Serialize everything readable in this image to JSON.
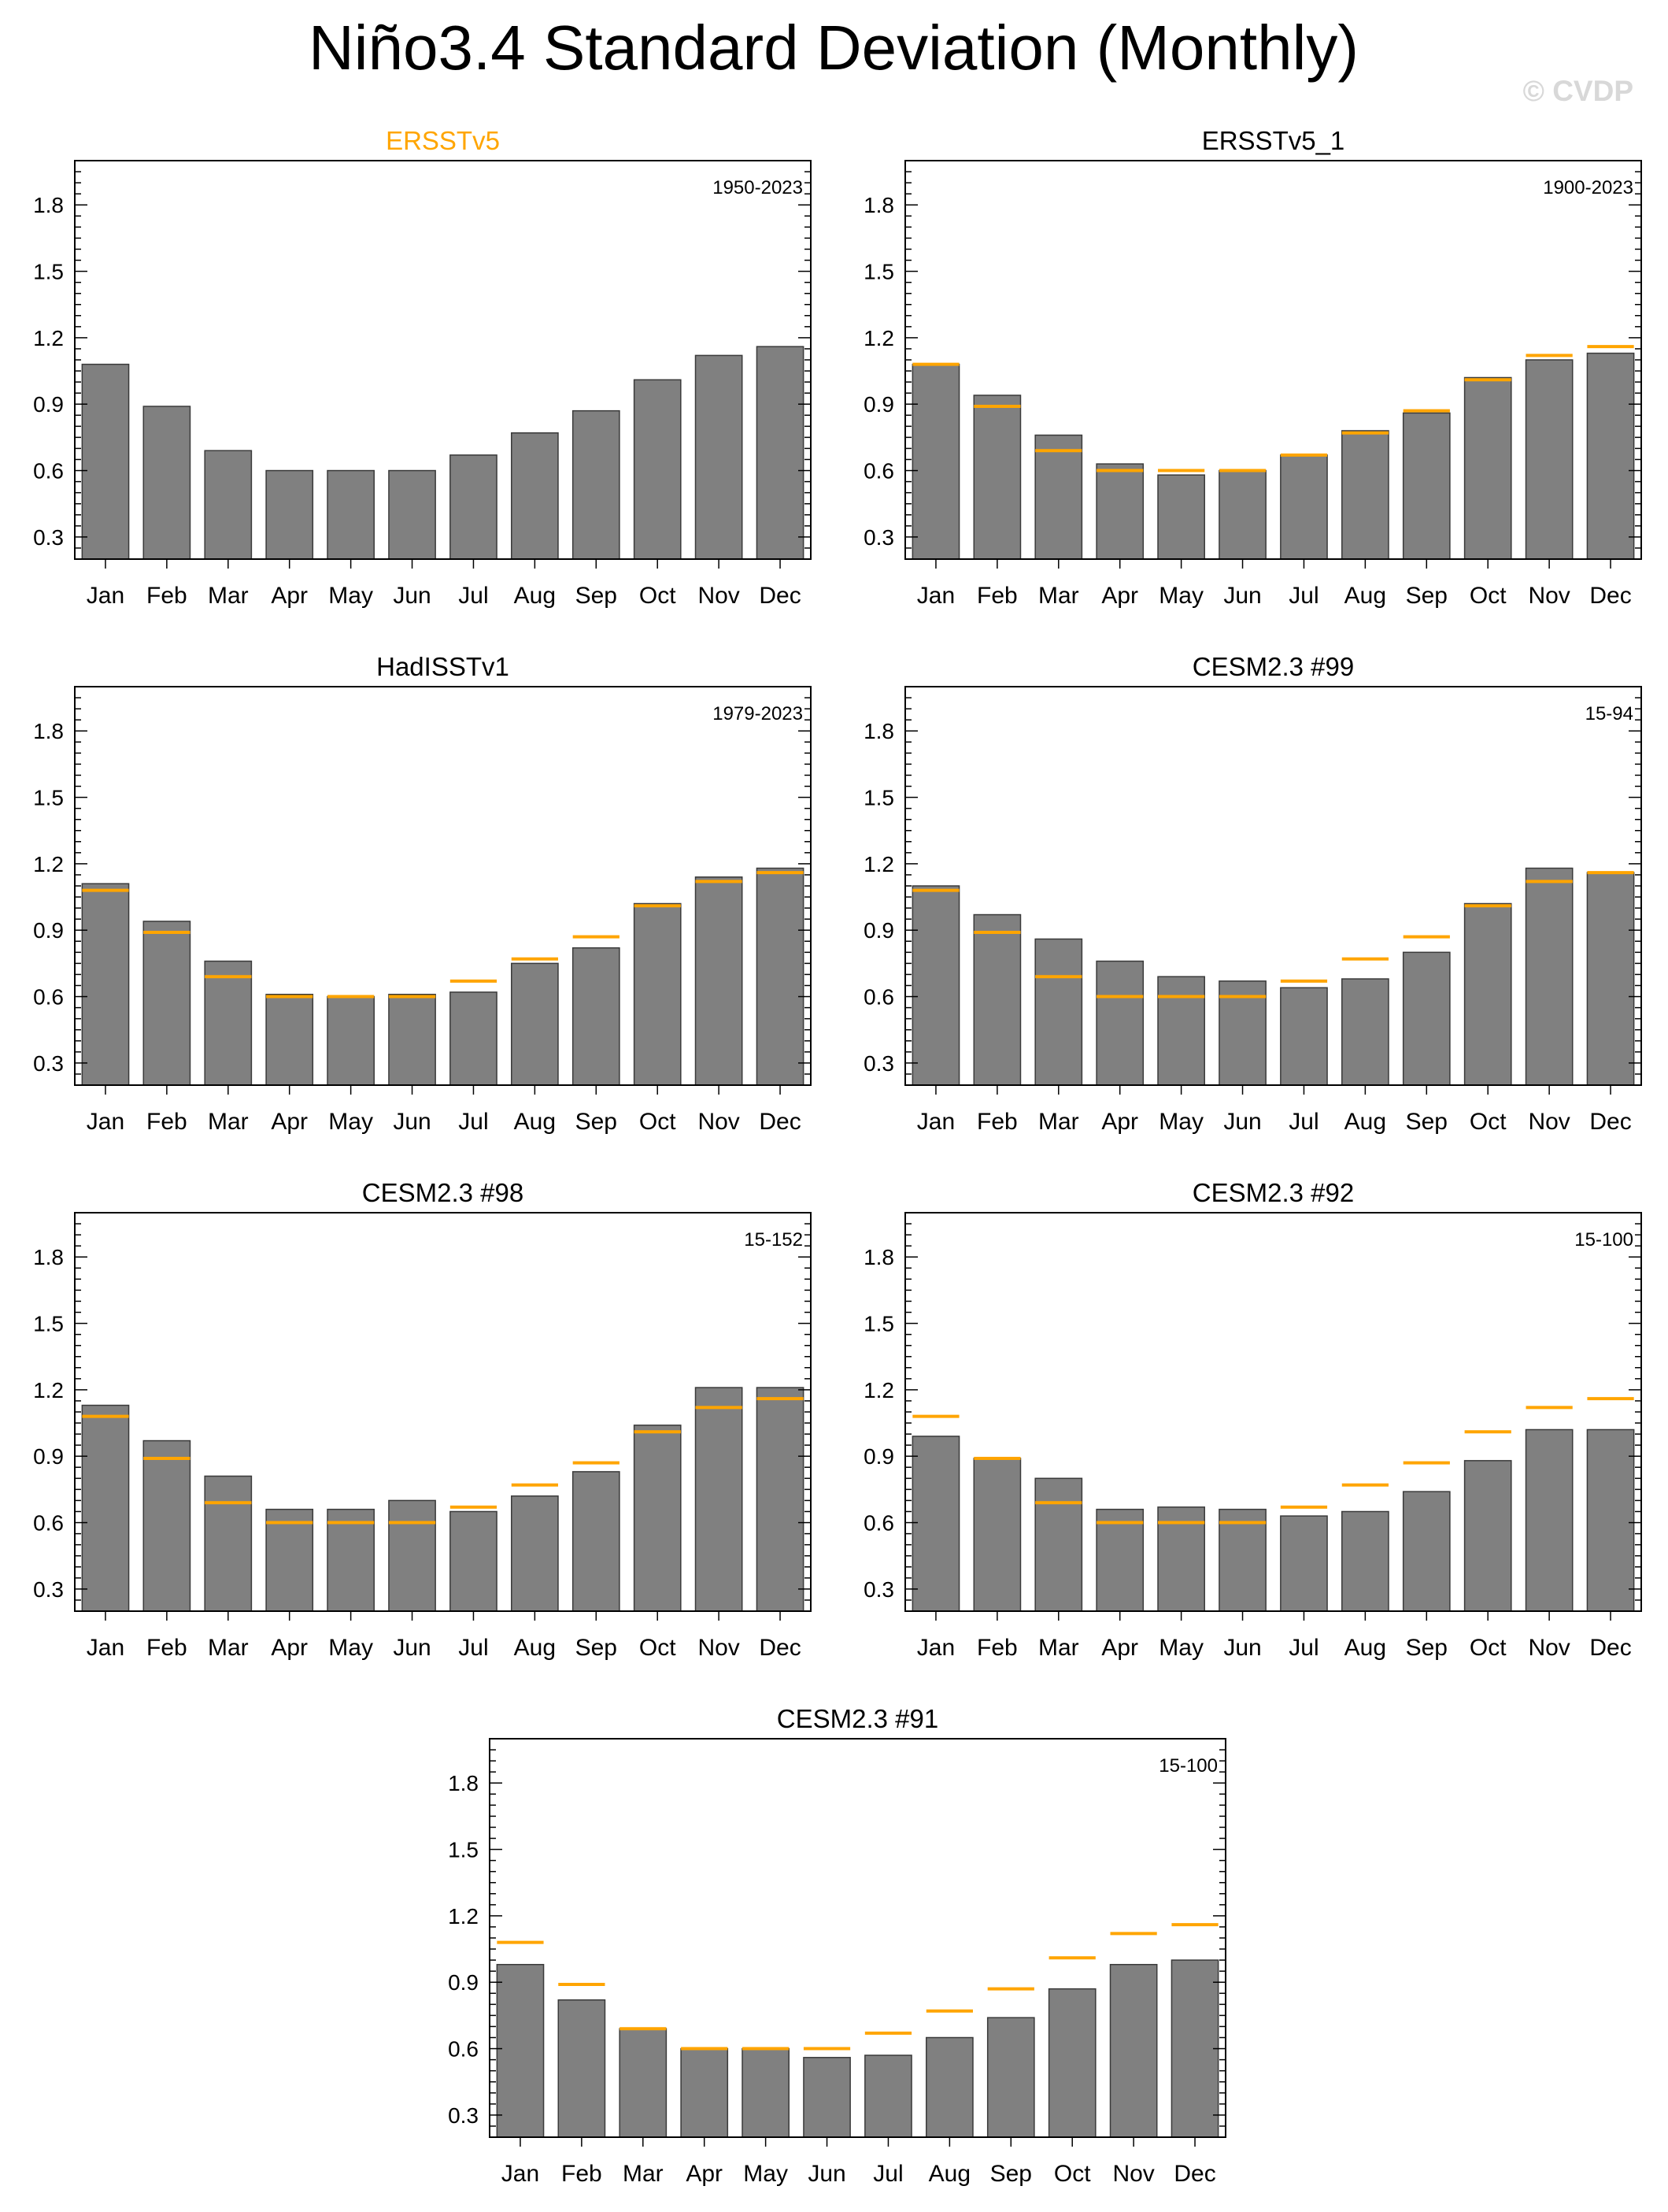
{
  "title": "Niño3.4 Standard Deviation (Monthly)",
  "watermark": "© CVDP",
  "colors": {
    "bar": "#808080",
    "bar_edge": "#3a3a3a",
    "reference": "#FFA500",
    "reference_title": "#FFA500",
    "axis": "#000000",
    "watermark": "#d8d8d8"
  },
  "chart_data": [
    {
      "type": "bar",
      "title": "ERSSTv5",
      "is_reference": true,
      "period": "1950-2023",
      "categories": [
        "Jan",
        "Feb",
        "Mar",
        "Apr",
        "May",
        "Jun",
        "Jul",
        "Aug",
        "Sep",
        "Oct",
        "Nov",
        "Dec"
      ],
      "values": [
        1.08,
        0.89,
        0.69,
        0.6,
        0.6,
        0.6,
        0.67,
        0.77,
        0.87,
        1.01,
        1.12,
        1.16
      ],
      "ylim": [
        0.2,
        2.0
      ],
      "yticks": [
        0.3,
        0.6,
        0.9,
        1.2,
        1.5,
        1.8
      ],
      "ytick_labels": [
        "0.3",
        "0.6",
        "0.9",
        "1.2",
        "1.5",
        "1.8"
      ]
    },
    {
      "type": "bar",
      "title": "ERSSTv5_1",
      "period": "1900-2023",
      "categories": [
        "Jan",
        "Feb",
        "Mar",
        "Apr",
        "May",
        "Jun",
        "Jul",
        "Aug",
        "Sep",
        "Oct",
        "Nov",
        "Dec"
      ],
      "values": [
        1.08,
        0.94,
        0.76,
        0.63,
        0.58,
        0.6,
        0.67,
        0.78,
        0.86,
        1.02,
        1.1,
        1.13
      ],
      "reference": [
        1.08,
        0.89,
        0.69,
        0.6,
        0.6,
        0.6,
        0.67,
        0.77,
        0.87,
        1.01,
        1.12,
        1.16
      ],
      "ylim": [
        0.2,
        2.0
      ],
      "yticks": [
        0.3,
        0.6,
        0.9,
        1.2,
        1.5,
        1.8
      ],
      "ytick_labels": [
        "0.3",
        "0.6",
        "0.9",
        "1.2",
        "1.5",
        "1.8"
      ]
    },
    {
      "type": "bar",
      "title": "HadISSTv1",
      "period": "1979-2023",
      "categories": [
        "Jan",
        "Feb",
        "Mar",
        "Apr",
        "May",
        "Jun",
        "Jul",
        "Aug",
        "Sep",
        "Oct",
        "Nov",
        "Dec"
      ],
      "values": [
        1.11,
        0.94,
        0.76,
        0.61,
        0.6,
        0.61,
        0.62,
        0.75,
        0.82,
        1.02,
        1.14,
        1.18
      ],
      "reference": [
        1.08,
        0.89,
        0.69,
        0.6,
        0.6,
        0.6,
        0.67,
        0.77,
        0.87,
        1.01,
        1.12,
        1.16
      ],
      "ylim": [
        0.2,
        2.0
      ],
      "yticks": [
        0.3,
        0.6,
        0.9,
        1.2,
        1.5,
        1.8
      ],
      "ytick_labels": [
        "0.3",
        "0.6",
        "0.9",
        "1.2",
        "1.5",
        "1.8"
      ]
    },
    {
      "type": "bar",
      "title": "CESM2.3 #99",
      "period": "15-94",
      "categories": [
        "Jan",
        "Feb",
        "Mar",
        "Apr",
        "May",
        "Jun",
        "Jul",
        "Aug",
        "Sep",
        "Oct",
        "Nov",
        "Dec"
      ],
      "values": [
        1.1,
        0.97,
        0.86,
        0.76,
        0.69,
        0.67,
        0.64,
        0.68,
        0.8,
        1.02,
        1.18,
        1.16
      ],
      "reference": [
        1.08,
        0.89,
        0.69,
        0.6,
        0.6,
        0.6,
        0.67,
        0.77,
        0.87,
        1.01,
        1.12,
        1.16
      ],
      "ylim": [
        0.2,
        2.0
      ],
      "yticks": [
        0.3,
        0.6,
        0.9,
        1.2,
        1.5,
        1.8
      ],
      "ytick_labels": [
        "0.3",
        "0.6",
        "0.9",
        "1.2",
        "1.5",
        "1.8"
      ]
    },
    {
      "type": "bar",
      "title": "CESM2.3 #98",
      "period": "15-152",
      "categories": [
        "Jan",
        "Feb",
        "Mar",
        "Apr",
        "May",
        "Jun",
        "Jul",
        "Aug",
        "Sep",
        "Oct",
        "Nov",
        "Dec"
      ],
      "values": [
        1.13,
        0.97,
        0.81,
        0.66,
        0.66,
        0.7,
        0.65,
        0.72,
        0.83,
        1.04,
        1.21,
        1.21
      ],
      "reference": [
        1.08,
        0.89,
        0.69,
        0.6,
        0.6,
        0.6,
        0.67,
        0.77,
        0.87,
        1.01,
        1.12,
        1.16
      ],
      "ylim": [
        0.2,
        2.0
      ],
      "yticks": [
        0.3,
        0.6,
        0.9,
        1.2,
        1.5,
        1.8
      ],
      "ytick_labels": [
        "0.3",
        "0.6",
        "0.9",
        "1.2",
        "1.5",
        "1.8"
      ]
    },
    {
      "type": "bar",
      "title": "CESM2.3 #92",
      "period": "15-100",
      "categories": [
        "Jan",
        "Feb",
        "Mar",
        "Apr",
        "May",
        "Jun",
        "Jul",
        "Aug",
        "Sep",
        "Oct",
        "Nov",
        "Dec"
      ],
      "values": [
        0.99,
        0.89,
        0.8,
        0.66,
        0.67,
        0.66,
        0.63,
        0.65,
        0.74,
        0.88,
        1.02,
        1.02
      ],
      "reference": [
        1.08,
        0.89,
        0.69,
        0.6,
        0.6,
        0.6,
        0.67,
        0.77,
        0.87,
        1.01,
        1.12,
        1.16
      ],
      "ylim": [
        0.2,
        2.0
      ],
      "yticks": [
        0.3,
        0.6,
        0.9,
        1.2,
        1.5,
        1.8
      ],
      "ytick_labels": [
        "0.3",
        "0.6",
        "0.9",
        "1.2",
        "1.5",
        "1.8"
      ]
    },
    {
      "type": "bar",
      "title": "CESM2.3 #91",
      "period": "15-100",
      "categories": [
        "Jan",
        "Feb",
        "Mar",
        "Apr",
        "May",
        "Jun",
        "Jul",
        "Aug",
        "Sep",
        "Oct",
        "Nov",
        "Dec"
      ],
      "values": [
        0.98,
        0.82,
        0.69,
        0.6,
        0.6,
        0.56,
        0.57,
        0.65,
        0.74,
        0.87,
        0.98,
        1.0
      ],
      "reference": [
        1.08,
        0.89,
        0.69,
        0.6,
        0.6,
        0.6,
        0.67,
        0.77,
        0.87,
        1.01,
        1.12,
        1.16
      ],
      "ylim": [
        0.2,
        2.0
      ],
      "yticks": [
        0.3,
        0.6,
        0.9,
        1.2,
        1.5,
        1.8
      ],
      "ytick_labels": [
        "0.3",
        "0.6",
        "0.9",
        "1.2",
        "1.5",
        "1.8"
      ]
    }
  ]
}
